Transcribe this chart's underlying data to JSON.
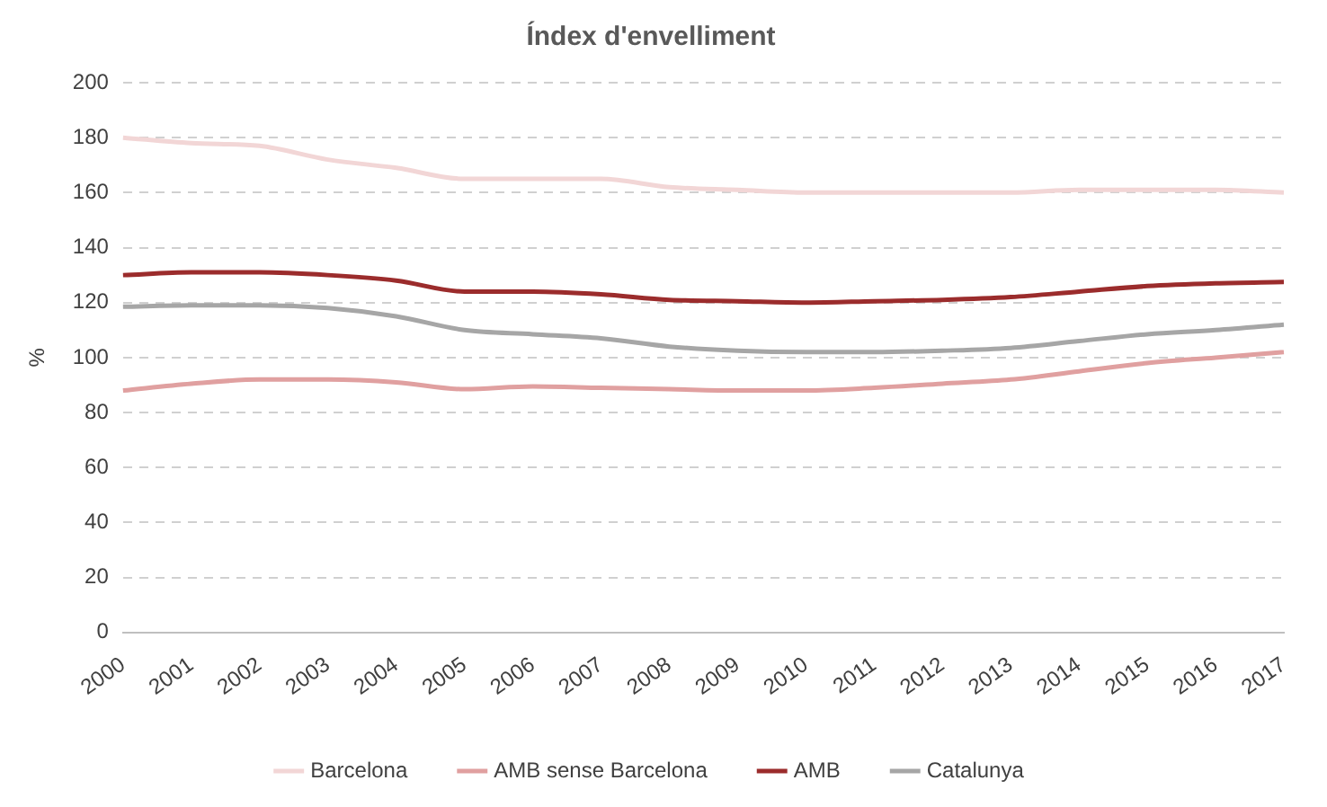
{
  "chart_data": {
    "type": "line",
    "title": "Índex d'envelliment",
    "ylabel": "%",
    "categories": [
      "2000",
      "2001",
      "2002",
      "2003",
      "2004",
      "2005",
      "2006",
      "2007",
      "2008",
      "2009",
      "2010",
      "2011",
      "2012",
      "2013",
      "2014",
      "2015",
      "2016",
      "2017"
    ],
    "series": [
      {
        "name": "Barcelona",
        "color": "#f2d6d6",
        "values": [
          180,
          178,
          177,
          172,
          169,
          165,
          165,
          165,
          162,
          161,
          160,
          160,
          160,
          160,
          161,
          161,
          161,
          160
        ]
      },
      {
        "name": "AMB sense Barcelona",
        "color": "#e0a0a0",
        "values": [
          88,
          90.5,
          92,
          92,
          91,
          88.5,
          89.5,
          89,
          88.5,
          88,
          88,
          89,
          90.5,
          92,
          95,
          98,
          100,
          102
        ]
      },
      {
        "name": "AMB",
        "color": "#9b2c2c",
        "values": [
          130,
          131,
          131,
          130,
          128,
          124,
          124,
          123,
          121,
          120.5,
          120,
          120.5,
          121,
          122,
          124,
          126,
          127,
          127.5
        ]
      },
      {
        "name": "Catalunya",
        "color": "#a6a6a6",
        "values": [
          118.5,
          119,
          119,
          118,
          115,
          110,
          108.5,
          107,
          104,
          102.5,
          102,
          102,
          102.5,
          103.5,
          106,
          108.5,
          110,
          112
        ]
      }
    ],
    "ylim": [
      0,
      200
    ],
    "yticks": [
      0,
      20,
      40,
      60,
      80,
      100,
      120,
      140,
      160,
      180,
      200
    ],
    "grid": "y",
    "legend": "bottom",
    "marker": "none",
    "line_style": "solid"
  }
}
